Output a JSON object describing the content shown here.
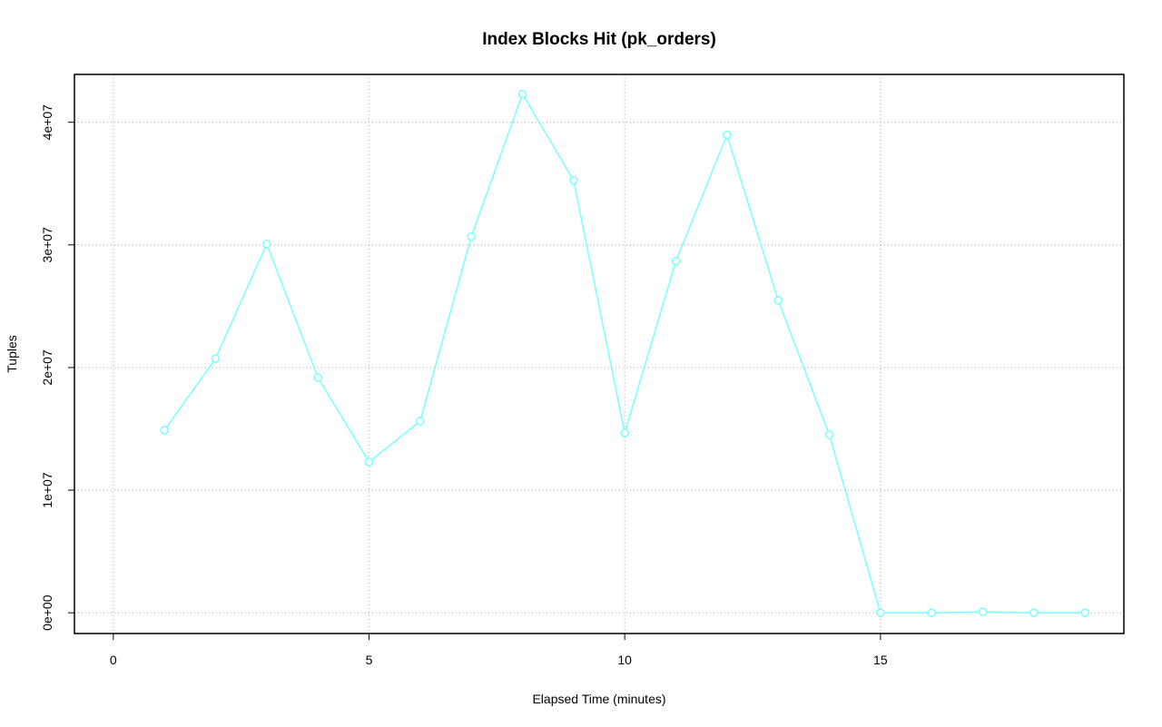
{
  "chart_data": {
    "type": "line",
    "title": "Index Blocks Hit (pk_orders)",
    "xlabel": "Elapsed Time (minutes)",
    "ylabel": "Tuples",
    "x": [
      1,
      2,
      3,
      4,
      5,
      6,
      7,
      8,
      9,
      10,
      11,
      12,
      13,
      14,
      15,
      16,
      17,
      18,
      19
    ],
    "series": [
      {
        "name": "pk_orders",
        "color": "#80ffff",
        "values": [
          14890000,
          20740000,
          30070000,
          19190000,
          12300000,
          15630000,
          30670000,
          42300000,
          35260000,
          14670000,
          28670000,
          38960000,
          25480000,
          14520000,
          0,
          0,
          70000,
          0,
          0
        ]
      }
    ],
    "xlim": [
      -0.76,
      19.76
    ],
    "xticks": [
      0,
      5,
      10,
      15
    ],
    "ylim": [
      -1690000,
      43900000
    ],
    "yticks": [
      {
        "value": 0,
        "label": "0e+00"
      },
      {
        "value": 10000000,
        "label": "1e+07"
      },
      {
        "value": 20000000,
        "label": "2e+07"
      },
      {
        "value": 30000000,
        "label": "3e+07"
      },
      {
        "value": 40000000,
        "label": "4e+07"
      }
    ],
    "grid": true
  }
}
